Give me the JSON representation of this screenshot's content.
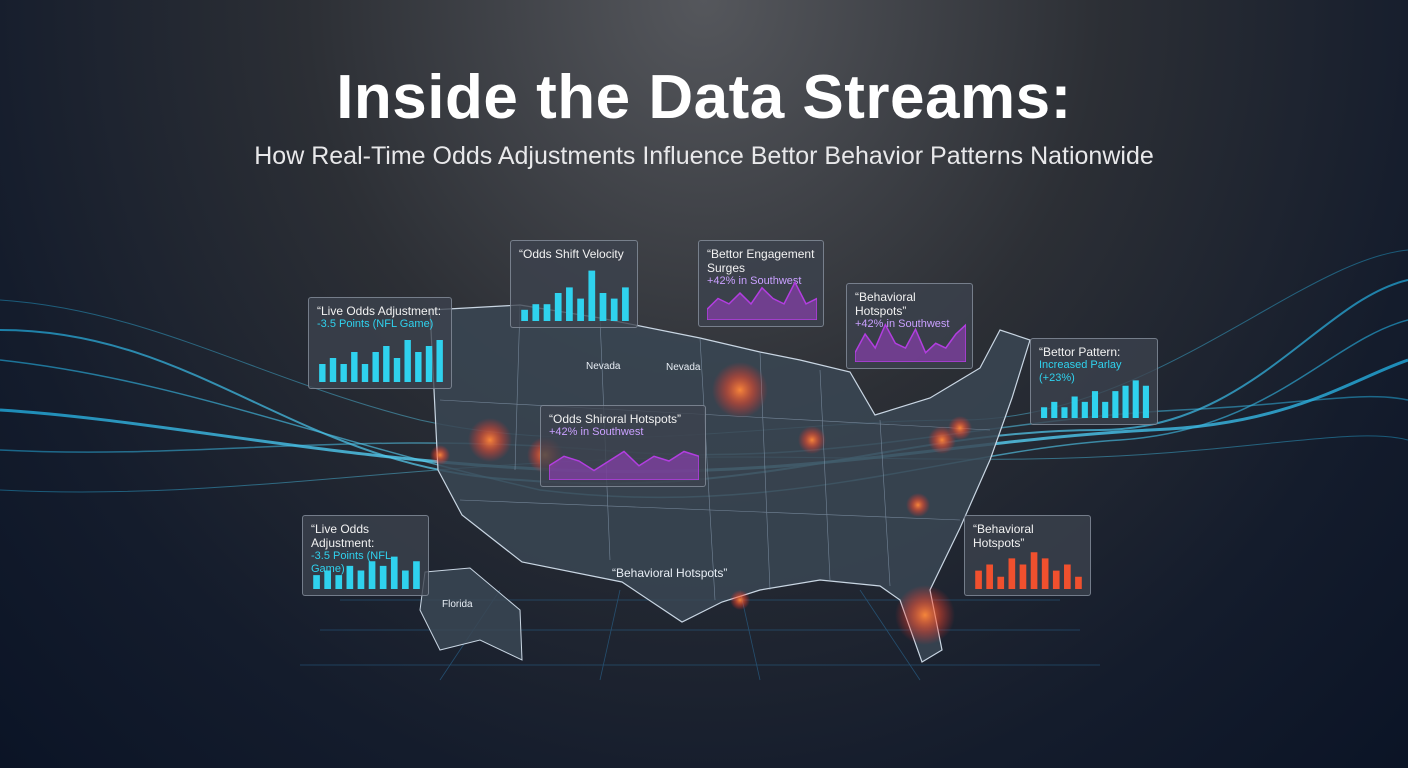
{
  "header": {
    "title": "Inside the Data Streams:",
    "subtitle": "How Real-Time Odds Adjustments Influence Bettor Behavior Patterns Nationwide"
  },
  "panels": [
    {
      "title": "“Live Odds Adjustment:",
      "subtitle": "-3.5 Points (NFL Game)",
      "chart": {
        "type": "bar",
        "color": "#2fd2ee",
        "ylim": [
          0,
          8
        ],
        "values": [
          3,
          4,
          3,
          5,
          3,
          5,
          6,
          4,
          7,
          5,
          6,
          7
        ]
      }
    },
    {
      "title": "“Odds Shift Velocity",
      "chart": {
        "type": "bar",
        "color": "#2fd2ee",
        "ylim": [
          0,
          10
        ],
        "values": [
          2,
          3,
          3,
          5,
          6,
          4,
          9,
          5,
          4,
          6
        ]
      }
    },
    {
      "title": "“Bettor Engagement Surges",
      "subtitle": "+42% in Southwest",
      "chart": {
        "type": "area",
        "color": "#b23ee0",
        "ylim": [
          0,
          8
        ],
        "values": [
          2,
          4,
          3,
          5,
          3,
          6,
          4,
          3,
          7,
          3,
          4
        ]
      }
    },
    {
      "title": "“Behavioral Hotspots”",
      "subtitle": "+42% in Southwest",
      "chart": {
        "type": "area",
        "color": "#b23ee0",
        "ylim": [
          0,
          9
        ],
        "values": [
          2,
          6,
          3,
          8,
          4,
          3,
          7,
          2,
          4,
          3,
          6,
          8
        ]
      }
    },
    {
      "title": "“Bettor Pattern:",
      "subtitle": "Increased Parlay (+23%)",
      "chart": {
        "type": "bar",
        "color": "#2fd2ee",
        "ylim": [
          0,
          8
        ],
        "values": [
          2,
          3,
          2,
          4,
          3,
          5,
          3,
          5,
          6,
          7,
          6
        ]
      }
    },
    {
      "title": "“Live Odds Adjustment:",
      "subtitle": "-3.5 Points (NFL Game)",
      "chart": {
        "type": "bar",
        "color": "#2fd2ee",
        "ylim": [
          0,
          8
        ],
        "values": [
          3,
          4,
          3,
          5,
          4,
          6,
          5,
          7,
          4,
          6
        ]
      }
    },
    {
      "title": "“Behavioral Hotspots”",
      "chart": {
        "type": "bar",
        "color": "#f0502e",
        "ylim": [
          0,
          8
        ],
        "values": [
          3,
          4,
          2,
          5,
          4,
          6,
          5,
          3,
          4,
          2
        ]
      }
    },
    {
      "title": "“Odds Shiroral Hotspots”",
      "subtitle": "+42% in Southwest",
      "chart": {
        "type": "area",
        "color": "#b23ee0",
        "ylim": [
          0,
          8
        ],
        "values": [
          3,
          5,
          4,
          2,
          4,
          6,
          3,
          5,
          4,
          6,
          5
        ]
      }
    }
  ],
  "map_labels": [
    "Nevada",
    "Nevada",
    "Florida",
    "“Behavioral Hotspots”"
  ]
}
